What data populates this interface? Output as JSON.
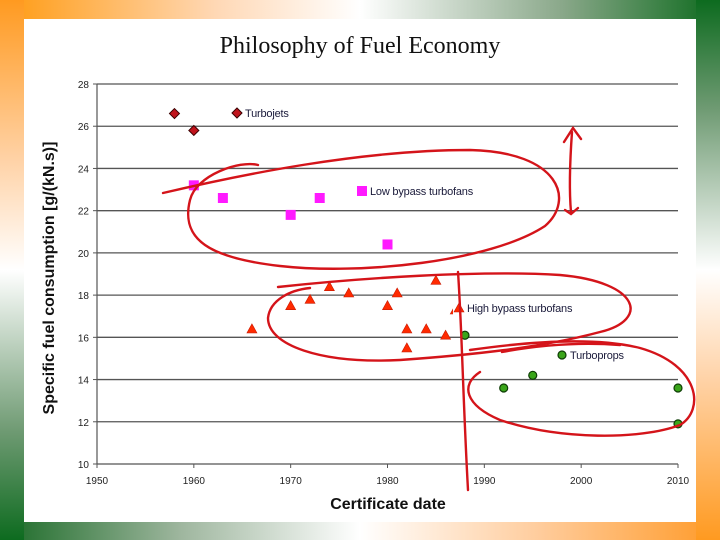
{
  "slide": {
    "title": "Philosophy of Fuel Economy"
  },
  "chart_data": {
    "type": "scatter",
    "title": "",
    "xlabel": "Certificate date",
    "ylabel": "Specific fuel consumption [g/(kN.s)]",
    "xlim": [
      1950,
      2010
    ],
    "ylim": [
      10,
      28
    ],
    "xticks": [
      1950,
      1960,
      1970,
      1980,
      1990,
      2000,
      2010
    ],
    "yticks": [
      10,
      12,
      14,
      16,
      18,
      20,
      22,
      24,
      26,
      28
    ],
    "grid": "horizontal",
    "legend_position": "inline labels",
    "series": [
      {
        "name": "Turbojets",
        "marker": "diamond",
        "color": "#c0141c",
        "points": [
          [
            1958,
            26.6
          ],
          [
            1960,
            25.8
          ]
        ]
      },
      {
        "name": "Low bypass turbofans",
        "marker": "square",
        "color": "#ff1aff",
        "points": [
          [
            1960,
            23.2
          ],
          [
            1963,
            22.6
          ],
          [
            1970,
            21.8
          ],
          [
            1973,
            22.6
          ],
          [
            1980,
            20.4
          ]
        ]
      },
      {
        "name": "High bypass turbofans",
        "marker": "triangle",
        "color": "#ff2a00",
        "points": [
          [
            1966,
            16.4
          ],
          [
            1970,
            17.5
          ],
          [
            1972,
            17.8
          ],
          [
            1974,
            18.4
          ],
          [
            1976,
            18.1
          ],
          [
            1980,
            17.5
          ],
          [
            1981,
            18.1
          ],
          [
            1982,
            16.4
          ],
          [
            1982,
            15.5
          ],
          [
            1984,
            16.4
          ],
          [
            1985,
            18.7
          ],
          [
            1986,
            16.1
          ],
          [
            1987,
            17.3
          ]
        ]
      },
      {
        "name": "Turboprops",
        "marker": "circle",
        "color": "#3aa51a",
        "points": [
          [
            1988,
            16.1
          ],
          [
            1992,
            13.6
          ],
          [
            1995,
            14.2
          ],
          [
            1998,
            15.2
          ],
          [
            2010,
            13.6
          ],
          [
            2010,
            11.9
          ]
        ]
      }
    ],
    "annotations": [
      "hand-drawn red ellipse around Low bypass turbofans group",
      "hand-drawn red ellipse around High bypass turbofans group",
      "hand-drawn red ellipse around Turboprops group",
      "hand-drawn red double-headed arrow spanning y≈22 to y≈25.8 at x≈2000",
      "hand-drawn red vertical line near x≈1988"
    ]
  }
}
